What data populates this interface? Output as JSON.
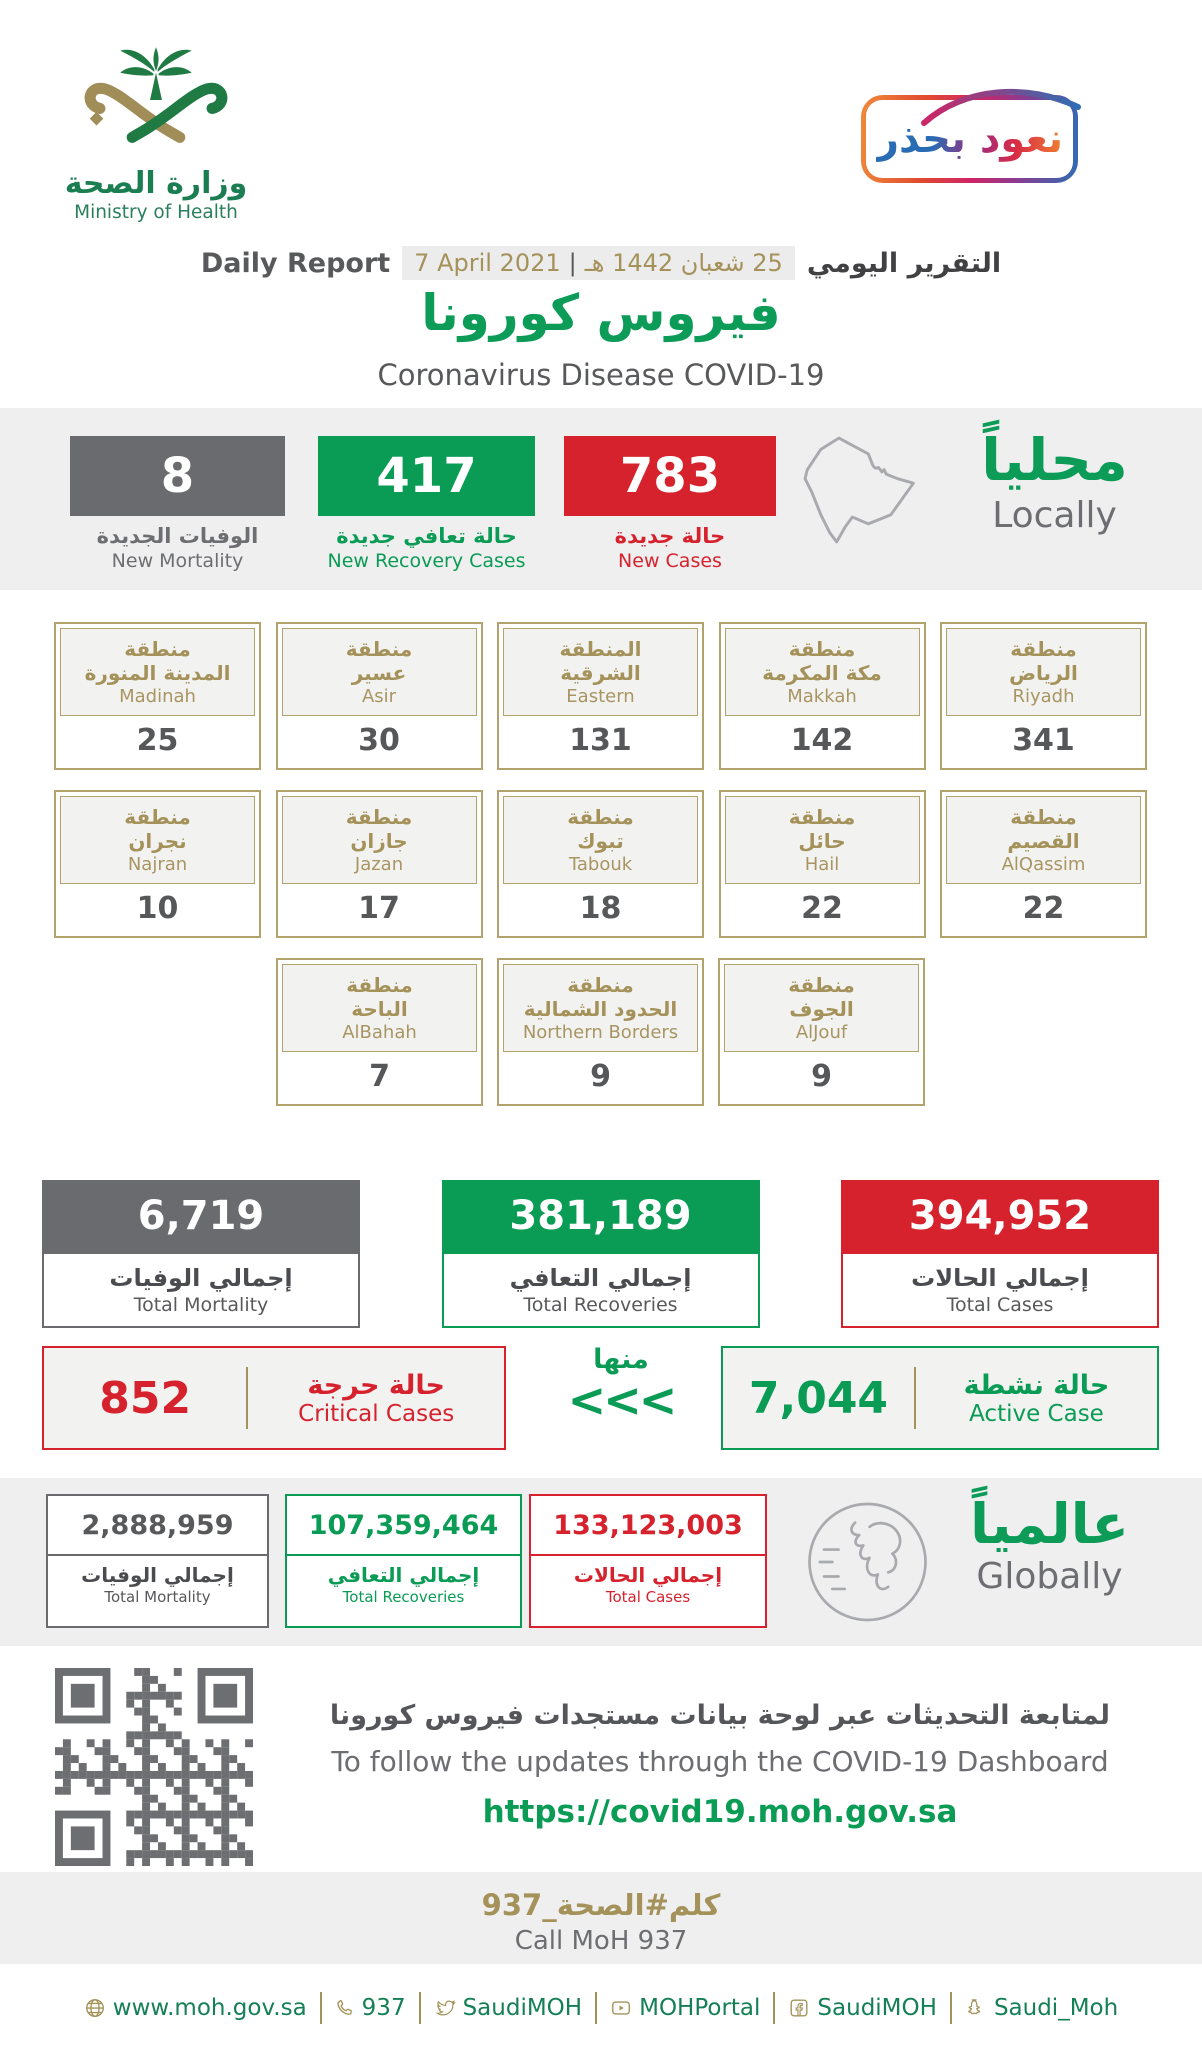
{
  "colors": {
    "green": "#0a9b55",
    "red": "#d5222d",
    "dark_gray": "#6d6e71",
    "gold": "#a5925a",
    "band_bg": "#efeff0"
  },
  "header": {
    "logo": {
      "title_ar": "وزارة الصحة",
      "title_en": "Ministry of Health"
    },
    "badge_text": "نعود بحذر",
    "report": {
      "label_ar": "التقرير اليومي",
      "label_en": "Daily Report",
      "date_hijri": "25 شعبان 1442 هـ",
      "date_sep": "|",
      "date_gregorian": "7 April 2021"
    },
    "title_ar": "فيروس كورونا",
    "title_en": "Coronavirus Disease COVID-19"
  },
  "locally": {
    "heading_ar": "محلياً",
    "heading_en": "Locally",
    "new_mortality": {
      "value": "8",
      "label_ar": "الوفيات الجديدة",
      "label_en": "New Mortality"
    },
    "new_recoveries": {
      "value": "417",
      "label_ar": "حالة تعافي جديدة",
      "label_en": "New Recovery Cases"
    },
    "new_cases": {
      "value": "783",
      "label_ar": "حالة جديدة",
      "label_en": "New Cases"
    }
  },
  "regions": {
    "row1": [
      {
        "name_ar": "منطقة\nالرياض",
        "name_en": "Riyadh",
        "value": "341"
      },
      {
        "name_ar": "منطقة\nمكة المكرمة",
        "name_en": "Makkah",
        "value": "142"
      },
      {
        "name_ar": "المنطقة\nالشرقية",
        "name_en": "Eastern",
        "value": "131"
      },
      {
        "name_ar": "منطقة\nعسير",
        "name_en": "Asir",
        "value": "30"
      },
      {
        "name_ar": "منطقة\nالمدينة المنورة",
        "name_en": "Madinah",
        "value": "25"
      }
    ],
    "row2": [
      {
        "name_ar": "منطقة\nالقصيم",
        "name_en": "AlQassim",
        "value": "22"
      },
      {
        "name_ar": "منطقة\nحائل",
        "name_en": "Hail",
        "value": "22"
      },
      {
        "name_ar": "منطقة\nتبوك",
        "name_en": "Tabouk",
        "value": "18"
      },
      {
        "name_ar": "منطقة\nجازان",
        "name_en": "Jazan",
        "value": "17"
      },
      {
        "name_ar": "منطقة\nنجران",
        "name_en": "Najran",
        "value": "10"
      }
    ],
    "row3": [
      {
        "name_ar": "منطقة\nالجوف",
        "name_en": "AlJouf",
        "value": "9"
      },
      {
        "name_ar": "منطقة\nالحدود الشمالية",
        "name_en": "Northern Borders",
        "value": "9"
      },
      {
        "name_ar": "منطقة\nالباحة",
        "name_en": "AlBahah",
        "value": "7"
      }
    ]
  },
  "totals": {
    "mortality": {
      "value": "6,719",
      "label_ar": "إجمالي الوفيات",
      "label_en": "Total Mortality"
    },
    "recoveries": {
      "value": "381,189",
      "label_ar": "إجمالي التعافي",
      "label_en": "Total Recoveries"
    },
    "cases": {
      "value": "394,952",
      "label_ar": "إجمالي الحالات",
      "label_en": "Total Cases"
    }
  },
  "breakdown": {
    "of_which_ar": "منها",
    "arrows": "<<<",
    "critical": {
      "value": "852",
      "label_ar": "حالة حرجة",
      "label_en": "Critical Cases"
    },
    "active": {
      "value": "7,044",
      "label_ar": "حالة نشطة",
      "label_en": "Active Case"
    }
  },
  "globally": {
    "heading_ar": "عالمياً",
    "heading_en": "Globally",
    "mortality": {
      "value": "2,888,959",
      "label_ar": "إجمالي الوفيات",
      "label_en": "Total Mortality"
    },
    "recoveries": {
      "value": "107,359,464",
      "label_ar": "إجمالي التعافي",
      "label_en": "Total Recoveries"
    },
    "cases": {
      "value": "133,123,003",
      "label_ar": "إجمالي الحالات",
      "label_en": "Total Cases"
    }
  },
  "dashboard": {
    "text_ar": "لمتابعة التحديثات عبر لوحة بيانات مستجدات فيروس كورونا",
    "text_en": "To follow the updates through the COVID-19 Dashboard",
    "url": "https://covid19.moh.gov.sa"
  },
  "call_center": {
    "text_ar": "كلم#الصحة_937",
    "text_en": "Call MoH 937"
  },
  "footer": {
    "website": "www.moh.gov.sa",
    "phone": "937",
    "twitter": "SaudiMOH",
    "youtube": "MOHPortal",
    "facebook": "SaudiMOH",
    "snapchat": "Saudi_Moh"
  }
}
